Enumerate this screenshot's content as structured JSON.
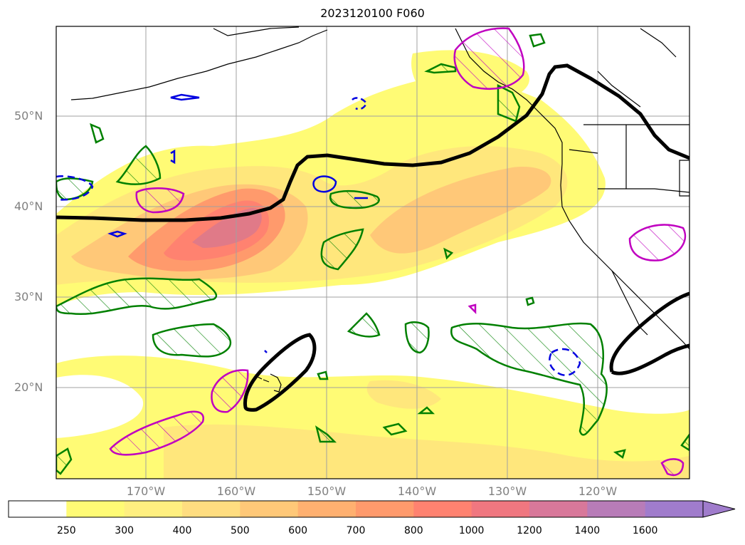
{
  "title": "2023120100 F060",
  "lat_labels": [
    {
      "text": "50°N",
      "lat": 50
    },
    {
      "text": "40°N",
      "lat": 40
    },
    {
      "text": "30°N",
      "lat": 30
    },
    {
      "text": "20°N",
      "lat": 20
    }
  ],
  "lon_labels": [
    {
      "text": "170°W",
      "lon": -170
    },
    {
      "text": "160°W",
      "lon": -160
    },
    {
      "text": "150°W",
      "lon": -150
    },
    {
      "text": "140°W",
      "lon": -140
    },
    {
      "text": "130°W",
      "lon": -130
    },
    {
      "text": "120°W",
      "lon": -120
    }
  ],
  "colorbar": {
    "levels": [
      "250",
      "300",
      "400",
      "500",
      "600",
      "700",
      "800",
      "1000",
      "1200",
      "1400",
      "1600"
    ],
    "colors": [
      "#ffffff",
      "#fffb75",
      "#ffef80",
      "#ffdd80",
      "#ffc878",
      "#ffb070",
      "#ff9a6c",
      "#ff8270",
      "#f07780",
      "#d8789a",
      "#b87cb8",
      "#a07ccc"
    ],
    "extend": "max"
  },
  "colors": {
    "ivt_line": "#000000",
    "hatched_green": "#008000",
    "hatched_magenta": "#c000c0",
    "dashed_blue": "#0000e0",
    "coast": "#000000",
    "grid": "#a0a0a0"
  }
}
